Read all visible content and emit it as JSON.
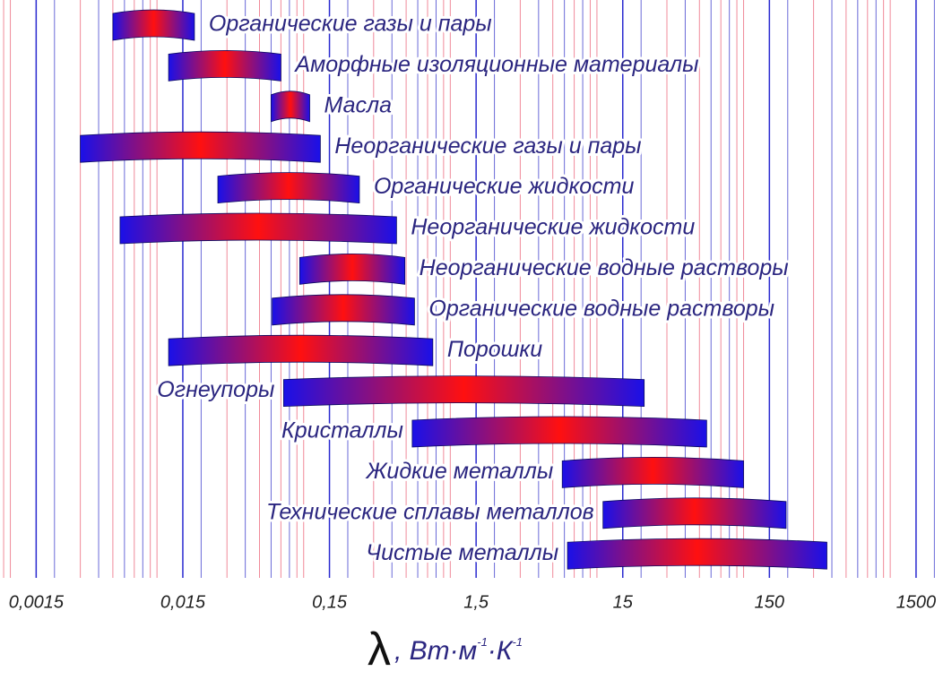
{
  "chart_data": {
    "type": "range_bar",
    "log_x": true,
    "xlim": [
      0.00085,
      2290
    ],
    "xticks": [
      {
        "value": 0.0015,
        "label": "0,0015"
      },
      {
        "value": 0.015,
        "label": "0,015"
      },
      {
        "value": 0.15,
        "label": "0,15"
      },
      {
        "value": 1.5,
        "label": "1,5"
      },
      15,
      150,
      1500
    ],
    "x_label": [
      "λ",
      ", Вт·м",
      "-1",
      "·К",
      "-1"
    ],
    "categories": [
      "Органические газы и пары",
      "Аморфные изоляционные материалы",
      "Масла",
      "Неорганические газы и пары",
      "Органические жидкости",
      "Неорганические жидкости",
      "Неорганические водные растворы",
      "Органические водные растворы",
      "Порошки",
      "Огнеупоры",
      "Кристаллы",
      "Жидкие металлы",
      "Технические сплавы металлов",
      "Чистые металлы"
    ],
    "low": [
      0.005,
      0.012,
      0.06,
      0.003,
      0.026,
      0.0056,
      0.094,
      0.061,
      0.012,
      0.073,
      0.55,
      5.8,
      11,
      6.3
    ],
    "high": [
      0.018,
      0.07,
      0.11,
      0.13,
      0.24,
      0.43,
      0.49,
      0.57,
      0.76,
      21,
      56,
      100,
      195,
      370
    ],
    "colors": [
      "#1a10e8",
      "#ff1010"
    ]
  }
}
